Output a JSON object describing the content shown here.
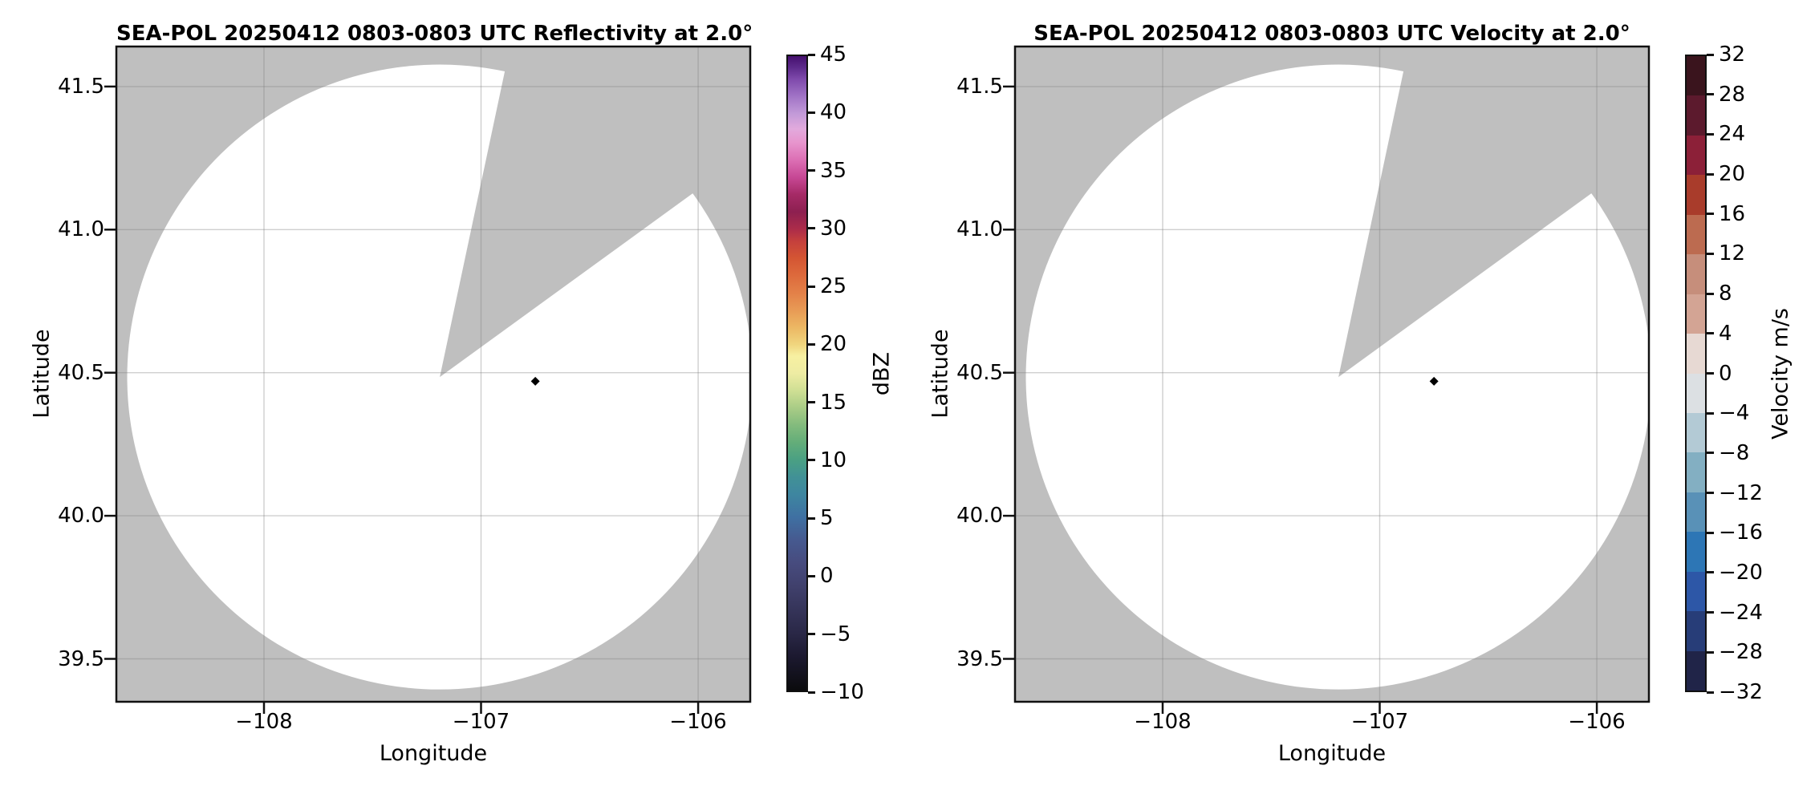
{
  "figure_colors": {
    "background": "#ffffff",
    "coverage_gap_gray": "#bfbfbf",
    "scan_blank": "#ffffff",
    "grid_line": "rgba(128,128,128,0.38)",
    "spine": "#111111",
    "marker": "#000000"
  },
  "panels": [
    {
      "title": "SEA-POL 20250412 0803-0803 UTC Reflectivity at 2.0°",
      "xlabel": "Longitude",
      "ylabel": "Latitude",
      "x_ticks": [
        {
          "value": -108,
          "label": "−108"
        },
        {
          "value": -107,
          "label": "−107"
        },
        {
          "value": -106,
          "label": "−106"
        }
      ],
      "y_ticks": [
        {
          "value": 41.5,
          "label": "41.5"
        },
        {
          "value": 41.0,
          "label": "41.0"
        },
        {
          "value": 40.5,
          "label": "40.5"
        },
        {
          "value": 40.0,
          "label": "40.0"
        },
        {
          "value": 39.5,
          "label": "39.5"
        }
      ],
      "colorbar": {
        "label": "dBZ",
        "min": -10,
        "max": 45,
        "type": "gradient",
        "ticks": [
          {
            "value": 45,
            "label": "45"
          },
          {
            "value": 40,
            "label": "40"
          },
          {
            "value": 35,
            "label": "35"
          },
          {
            "value": 30,
            "label": "30"
          },
          {
            "value": 25,
            "label": "25"
          },
          {
            "value": 20,
            "label": "20"
          },
          {
            "value": 15,
            "label": "15"
          },
          {
            "value": 10,
            "label": "10"
          },
          {
            "value": 5,
            "label": "5"
          },
          {
            "value": 0,
            "label": "0"
          },
          {
            "value": -5,
            "label": "−5"
          },
          {
            "value": -10,
            "label": "−10"
          }
        ],
        "stops": [
          {
            "v": 45,
            "c": "#45106e"
          },
          {
            "v": 44,
            "c": "#5e2b8c"
          },
          {
            "v": 43,
            "c": "#7f4aac"
          },
          {
            "v": 41.5,
            "c": "#a174c6"
          },
          {
            "v": 40,
            "c": "#c29ad8"
          },
          {
            "v": 38.7,
            "c": "#e2aadd"
          },
          {
            "v": 37.5,
            "c": "#e795cd"
          },
          {
            "v": 36,
            "c": "#dc6fb4"
          },
          {
            "v": 34.5,
            "c": "#c74895"
          },
          {
            "v": 33,
            "c": "#a52a66"
          },
          {
            "v": 31.5,
            "c": "#8d2050"
          },
          {
            "v": 30,
            "c": "#ac2c4a"
          },
          {
            "v": 29,
            "c": "#c43f3d"
          },
          {
            "v": 27.5,
            "c": "#d45533"
          },
          {
            "v": 26,
            "c": "#dd6a3c"
          },
          {
            "v": 24.5,
            "c": "#e38048"
          },
          {
            "v": 23,
            "c": "#e89a55"
          },
          {
            "v": 21.5,
            "c": "#ecb763"
          },
          {
            "v": 20,
            "c": "#f0d57e"
          },
          {
            "v": 19,
            "c": "#f7f0a2"
          },
          {
            "v": 17.5,
            "c": "#eeeca3"
          },
          {
            "v": 16,
            "c": "#cfdf94"
          },
          {
            "v": 14.5,
            "c": "#a9cc86"
          },
          {
            "v": 13,
            "c": "#83bb7d"
          },
          {
            "v": 11.5,
            "c": "#63ad79"
          },
          {
            "v": 10,
            "c": "#4aa083"
          },
          {
            "v": 8.5,
            "c": "#419196"
          },
          {
            "v": 7,
            "c": "#3e86a0"
          },
          {
            "v": 5,
            "c": "#3f70a2"
          },
          {
            "v": 3,
            "c": "#46598f"
          },
          {
            "v": 1,
            "c": "#474b7e"
          },
          {
            "v": -1,
            "c": "#40406c"
          },
          {
            "v": -3,
            "c": "#353459"
          },
          {
            "v": -5,
            "c": "#2a2847"
          },
          {
            "v": -7,
            "c": "#1c1930"
          },
          {
            "v": -10,
            "c": "#0b0b0d"
          }
        ]
      }
    },
    {
      "title": "SEA-POL 20250412 0803-0803 UTC Velocity at 2.0°",
      "xlabel": "Longitude",
      "ylabel": "Latitude",
      "x_ticks": [
        {
          "value": -108,
          "label": "−108"
        },
        {
          "value": -107,
          "label": "−107"
        },
        {
          "value": -106,
          "label": "−106"
        }
      ],
      "y_ticks": [
        {
          "value": 41.5,
          "label": "41.5"
        },
        {
          "value": 41.0,
          "label": "41.0"
        },
        {
          "value": 40.5,
          "label": "40.5"
        },
        {
          "value": 40.0,
          "label": "40.0"
        },
        {
          "value": 39.5,
          "label": "39.5"
        }
      ],
      "colorbar": {
        "label": "Velocity m/s",
        "min": -32,
        "max": 32,
        "type": "discrete",
        "ticks": [
          {
            "value": 32,
            "label": "32"
          },
          {
            "value": 28,
            "label": "28"
          },
          {
            "value": 24,
            "label": "24"
          },
          {
            "value": 20,
            "label": "20"
          },
          {
            "value": 16,
            "label": "16"
          },
          {
            "value": 12,
            "label": "12"
          },
          {
            "value": 8,
            "label": "8"
          },
          {
            "value": 4,
            "label": "4"
          },
          {
            "value": 0,
            "label": "0"
          },
          {
            "value": -4,
            "label": "−4"
          },
          {
            "value": -8,
            "label": "−8"
          },
          {
            "value": -12,
            "label": "−12"
          },
          {
            "value": -16,
            "label": "−16"
          },
          {
            "value": -20,
            "label": "−20"
          },
          {
            "value": -24,
            "label": "−24"
          },
          {
            "value": -28,
            "label": "−28"
          },
          {
            "value": -32,
            "label": "−32"
          }
        ],
        "segments": [
          {
            "range": [
              28,
              32
            ],
            "color": "#3a141d"
          },
          {
            "range": [
              24,
              28
            ],
            "color": "#5c1a2d"
          },
          {
            "range": [
              20,
              24
            ],
            "color": "#8c2038"
          },
          {
            "range": [
              16,
              20
            ],
            "color": "#a93c2b"
          },
          {
            "range": [
              12,
              16
            ],
            "color": "#bc6b50"
          },
          {
            "range": [
              8,
              12
            ],
            "color": "#c68e7b"
          },
          {
            "range": [
              4,
              8
            ],
            "color": "#d3a494"
          },
          {
            "range": [
              0,
              4
            ],
            "color": "#e7d9d3"
          },
          {
            "range": [
              -4,
              0
            ],
            "color": "#dce0e3"
          },
          {
            "range": [
              -8,
              -4
            ],
            "color": "#b3cad5"
          },
          {
            "range": [
              -12,
              -8
            ],
            "color": "#83afc2"
          },
          {
            "range": [
              -16,
              -12
            ],
            "color": "#5991b7"
          },
          {
            "range": [
              -20,
              -16
            ],
            "color": "#2d76b5"
          },
          {
            "range": [
              -24,
              -20
            ],
            "color": "#2d57a7"
          },
          {
            "range": [
              -28,
              -24
            ],
            "color": "#273d78"
          },
          {
            "range": [
              -32,
              -28
            ],
            "color": "#202448"
          }
        ]
      }
    }
  ],
  "chart_data": [
    {
      "type": "heatmap",
      "subtype": "radar-ppi-scan",
      "title": "SEA-POL 20250412 0803-0803 UTC Reflectivity at 2.0°",
      "xlabel": "Longitude",
      "ylabel": "Latitude",
      "xlim": [
        -108.68,
        -105.76
      ],
      "ylim": [
        39.35,
        41.64
      ],
      "x_ticks": [
        -108,
        -107,
        -106
      ],
      "y_ticks": [
        41.5,
        41.0,
        40.5,
        40.0,
        39.5
      ],
      "grid": true,
      "field": "reflectivity",
      "units": "dBZ",
      "value_range": [
        -10,
        45
      ],
      "colorbar_tick_step": 5,
      "radar_center": {
        "lon": -107.19,
        "lat": 40.485
      },
      "scan_radius_deg": {
        "lon": 1.44,
        "lat": 1.095
      },
      "missing_sector_azimuth_deg": [
        12,
        54
      ],
      "site_marker": {
        "lon": -106.75,
        "lat": 40.47,
        "symbol": "diamond",
        "color": "#000000"
      },
      "values_note": "no echo detected — entire scanned disc renders blank white; gray denotes area outside radar coverage and the missing azimuth sector"
    },
    {
      "type": "heatmap",
      "subtype": "radar-ppi-scan",
      "title": "SEA-POL 20250412 0803-0803 UTC Velocity at 2.0°",
      "xlabel": "Longitude",
      "ylabel": "Latitude",
      "xlim": [
        -108.68,
        -105.76
      ],
      "ylim": [
        39.35,
        41.64
      ],
      "x_ticks": [
        -108,
        -107,
        -106
      ],
      "y_ticks": [
        41.5,
        41.0,
        40.5,
        40.0,
        39.5
      ],
      "grid": true,
      "field": "velocity",
      "units": "m/s",
      "value_range": [
        -32,
        32
      ],
      "colorbar_tick_step": 4,
      "radar_center": {
        "lon": -107.19,
        "lat": 40.485
      },
      "scan_radius_deg": {
        "lon": 1.44,
        "lat": 1.095
      },
      "missing_sector_azimuth_deg": [
        12,
        54
      ],
      "site_marker": {
        "lon": -106.75,
        "lat": 40.47,
        "symbol": "diamond",
        "color": "#000000"
      },
      "values_note": "no echo detected — entire scanned disc renders blank white; gray denotes area outside radar coverage and the missing azimuth sector"
    }
  ]
}
